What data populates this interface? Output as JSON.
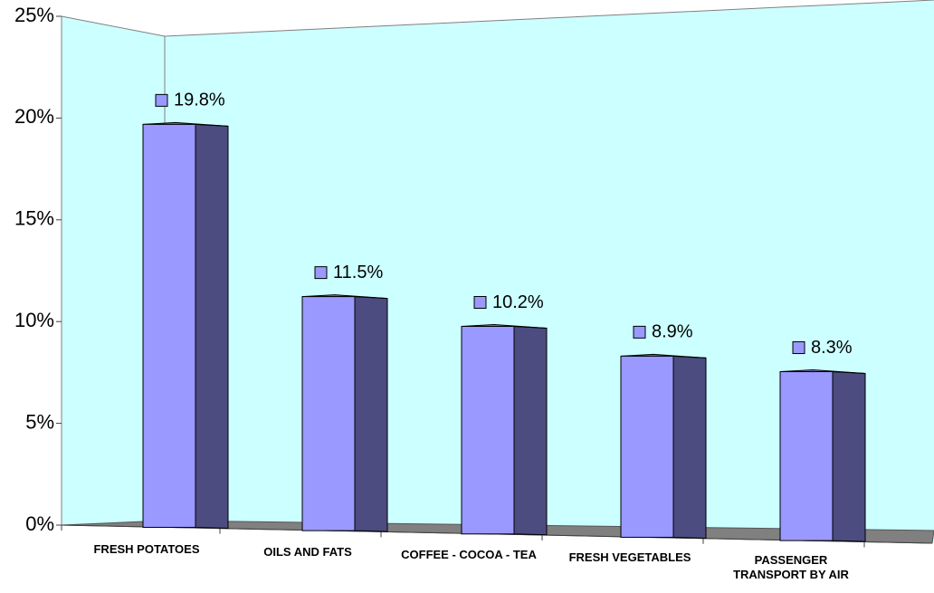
{
  "chart_data": {
    "type": "bar3d",
    "categories": [
      "FRESH POTATOES",
      "OILS AND FATS",
      "COFFEE - COCOA - TEA",
      "FRESH VEGETABLES",
      "PASSENGER TRANSPORT BY AIR"
    ],
    "values": [
      19.8,
      11.5,
      10.2,
      8.9,
      8.3
    ],
    "value_labels": [
      "19.8%",
      "11.5%",
      "10.2%",
      "8.9%",
      "8.3%"
    ],
    "color": "#9999ff",
    "ylim": [
      0,
      25
    ],
    "yticks": [
      {
        "value": 0,
        "label": "0%"
      },
      {
        "value": 5,
        "label": "5%"
      },
      {
        "value": 10,
        "label": "10%"
      },
      {
        "value": 15,
        "label": "15%"
      },
      {
        "value": 20,
        "label": "20%"
      },
      {
        "value": 25,
        "label": "25%"
      }
    ]
  }
}
